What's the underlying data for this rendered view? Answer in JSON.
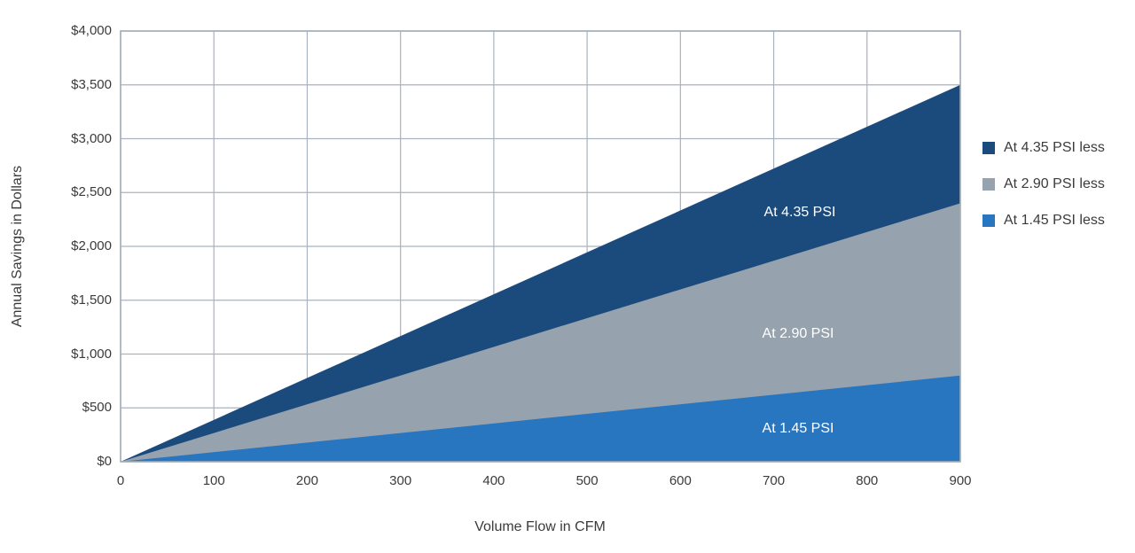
{
  "chart_data": {
    "type": "area",
    "title": "",
    "xlabel": "Volume Flow in CFM",
    "ylabel": "Annual Savings in Dollars",
    "xlim": [
      0,
      900
    ],
    "ylim": [
      0,
      4000
    ],
    "grid": true,
    "legend_position": "right",
    "grid_color": "#a9b3bf",
    "border_color": "#a3aeba",
    "background_color": "#ffffff",
    "text_color": "#3b3b3b",
    "inline_label_color": "#ffffff",
    "x_ticks": [
      {
        "value": 0,
        "label": "0"
      },
      {
        "value": 100,
        "label": "100"
      },
      {
        "value": 200,
        "label": "200"
      },
      {
        "value": 300,
        "label": "300"
      },
      {
        "value": 400,
        "label": "400"
      },
      {
        "value": 500,
        "label": "500"
      },
      {
        "value": 600,
        "label": "600"
      },
      {
        "value": 700,
        "label": "700"
      },
      {
        "value": 800,
        "label": "800"
      },
      {
        "value": 900,
        "label": "900"
      }
    ],
    "y_ticks": [
      {
        "value": 0,
        "label": "$0"
      },
      {
        "value": 500,
        "label": "$500"
      },
      {
        "value": 1000,
        "label": "$1,000"
      },
      {
        "value": 1500,
        "label": "$1,500"
      },
      {
        "value": 2000,
        "label": "$2,000"
      },
      {
        "value": 2500,
        "label": "$2,500"
      },
      {
        "value": 3000,
        "label": "$3,000"
      },
      {
        "value": 3500,
        "label": "$3,500"
      },
      {
        "value": 4000,
        "label": "$4,000"
      }
    ],
    "x": [
      0,
      900
    ],
    "series": [
      {
        "name": "At 4.35 PSI less",
        "inline_label": "At 4.35 PSI",
        "values": [
          0,
          3500
        ],
        "color": "#1b4a7d"
      },
      {
        "name": "At 2.90 PSI less",
        "inline_label": "At 2.90 PSI",
        "values": [
          0,
          2400
        ],
        "color": "#96a3ae"
      },
      {
        "name": "At 1.45 PSI less",
        "inline_label": "At 1.45 PSI",
        "values": [
          0,
          800
        ],
        "color": "#2876c0"
      }
    ]
  }
}
